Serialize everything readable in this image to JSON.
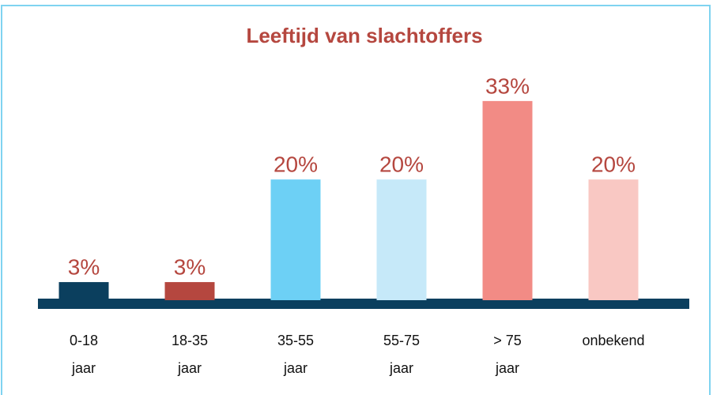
{
  "chart_data": {
    "type": "bar",
    "title": "Leeftijd van slachtoffers",
    "categories": [
      [
        "0-18",
        "jaar"
      ],
      [
        "18-35",
        "jaar"
      ],
      [
        "35-55",
        "jaar"
      ],
      [
        "55-75",
        "jaar"
      ],
      [
        "> 75",
        "jaar"
      ],
      [
        "onbekend"
      ]
    ],
    "values": [
      3,
      3,
      20,
      20,
      33,
      20
    ],
    "value_labels": [
      "3%",
      "3%",
      "20%",
      "20%",
      "33%",
      "20%"
    ],
    "colors": [
      "#0b3f5e",
      "#b5473f",
      "#6dd0f5",
      "#c6e9f9",
      "#f28b85",
      "#f9c8c3"
    ]
  }
}
